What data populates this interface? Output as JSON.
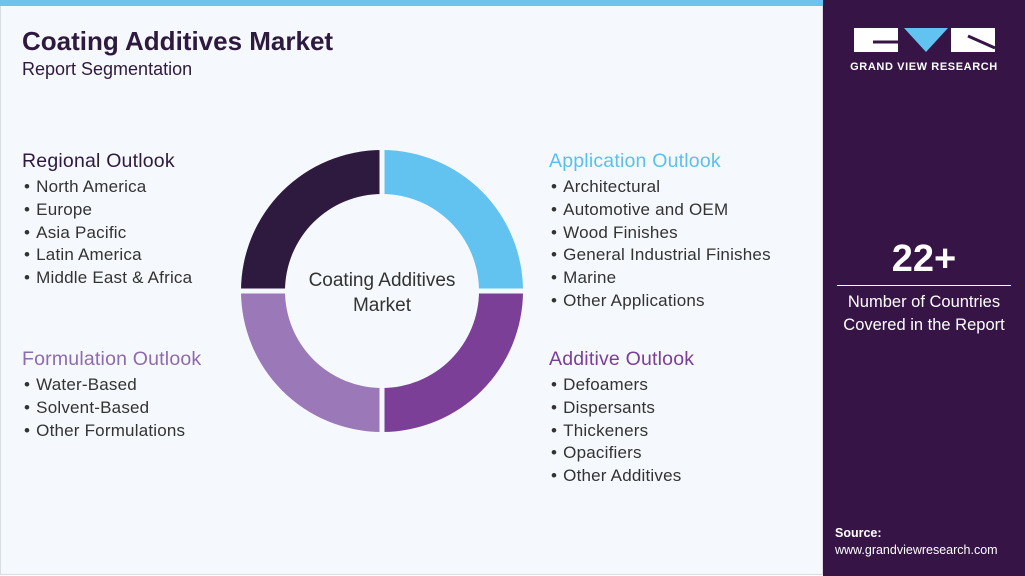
{
  "header": {
    "title": "Coating Additives Market",
    "subtitle": "Report Segmentation"
  },
  "center_label": "Coating Additives Market",
  "segments": [
    {
      "title": "Regional Outlook",
      "items": [
        "North America",
        "Europe",
        "Asia Pacific",
        "Latin America",
        "Middle East & Africa"
      ]
    },
    {
      "title": "Application Outlook",
      "items": [
        "Architectural",
        "Automotive and OEM",
        "Wood Finishes",
        "General Industrial Finishes",
        "Marine",
        "Other Applications"
      ]
    },
    {
      "title": "Formulation Outlook",
      "items": [
        "Water-Based",
        "Solvent-Based",
        "Other Formulations"
      ]
    },
    {
      "title": "Additive Outlook",
      "items": [
        "Defoamers",
        "Dispersants",
        "Thickeners",
        "Opacifiers",
        "Other Additives"
      ]
    }
  ],
  "sidebar": {
    "logo_text": "GRAND VIEW RESEARCH",
    "stat_value": "22+",
    "stat_label": "Number of Countries Covered in the Report",
    "source_label": "Source:",
    "source_url": "www.grandviewresearch.com"
  }
}
